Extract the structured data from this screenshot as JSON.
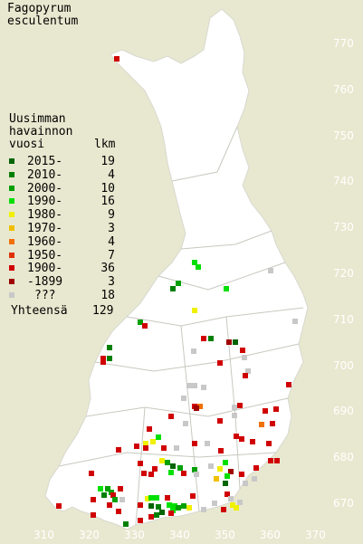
{
  "title_line1": "Fagopyrum",
  "title_line2": "esculentum",
  "legend": {
    "heading1": "Uusimman",
    "heading2": "havainnon",
    "heading3": "vuosi",
    "count_header": "lkm",
    "rows": [
      {
        "label": "2015-",
        "count": "19",
        "color": "#006400"
      },
      {
        "label": "2010-",
        "count": "4",
        "color": "#008000"
      },
      {
        "label": "2000-",
        "count": "10",
        "color": "#00a000"
      },
      {
        "label": "1990-",
        "count": "16",
        "color": "#00e000"
      },
      {
        "label": "1980-",
        "count": "9",
        "color": "#f0f000"
      },
      {
        "label": "1970-",
        "count": "3",
        "color": "#f0c000"
      },
      {
        "label": "1960-",
        "count": "4",
        "color": "#f07000"
      },
      {
        "label": "1950-",
        "count": "7",
        "color": "#e03000"
      },
      {
        "label": "1900-",
        "count": "36",
        "color": "#d00000"
      },
      {
        "label": "-1899",
        "count": "3",
        "color": "#a00000"
      },
      {
        "label": "???",
        "count": "18",
        "color": "#c8c8c8"
      }
    ],
    "total_label": "Yhteensä",
    "total_count": "129"
  },
  "x_axis": [
    "310",
    "320",
    "330",
    "340",
    "350",
    "360",
    "370"
  ],
  "y_axis": [
    "770",
    "760",
    "750",
    "740",
    "730",
    "720",
    "710",
    "700",
    "690",
    "680",
    "670"
  ]
}
